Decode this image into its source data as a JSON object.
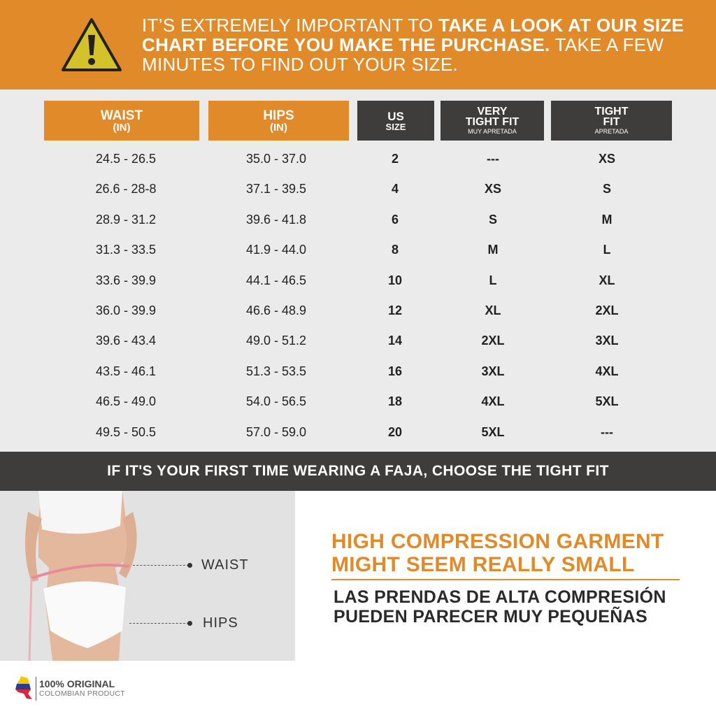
{
  "banner": {
    "icon": "warning-triangle-icon",
    "text_1": "IT’S EXTREMELY IMPORTANT TO ",
    "text_bold": "TAKE A LOOK AT OUR SIZE CHART BEFORE YOU MAKE THE PURCHASE.",
    "text_2": " TAKE A FEW MINUTES TO FIND OUT YOUR SIZE."
  },
  "table": {
    "headers": [
      {
        "title": "WAIST",
        "sub": "(IN)"
      },
      {
        "title": "HIPS",
        "sub": "(IN)"
      },
      {
        "title": "US",
        "sub": "SIZE"
      },
      {
        "title": "VERY\nTIGHT FIT",
        "sub": "MUY APRETADA"
      },
      {
        "title": "TIGHT\nFIT",
        "sub": "APRETADA"
      }
    ],
    "rows": [
      [
        "24.5 - 26.5",
        "35.0 - 37.0",
        "2",
        "---",
        "XS"
      ],
      [
        "26.6 - 28-8",
        "37.1 - 39.5",
        "4",
        "XS",
        "S"
      ],
      [
        "28.9 - 31.2",
        "39.6 - 41.8",
        "6",
        "S",
        "M"
      ],
      [
        "31.3 - 33.5",
        "41.9 - 44.0",
        "8",
        "M",
        "L"
      ],
      [
        "33.6 - 39.9",
        "44.1 - 46.5",
        "10",
        "L",
        "XL"
      ],
      [
        "36.0 - 39.9",
        "46.6 - 48.9",
        "12",
        "XL",
        "2XL"
      ],
      [
        "39.6 - 43.4",
        "49.0 - 51.2",
        "14",
        "2XL",
        "3XL"
      ],
      [
        "43.5 - 46.1",
        "51.3 - 53.5",
        "16",
        "3XL",
        "4XL"
      ],
      [
        "46.5 - 49.0",
        "54.0 - 56.5",
        "18",
        "4XL",
        "5XL"
      ],
      [
        "49.5 - 50.5",
        "57.0 - 59.0",
        "20",
        "5XL",
        "---"
      ]
    ]
  },
  "tip": "IF IT'S YOUR FIRST TIME WEARING A FAJA, CHOOSE THE TIGHT FIT",
  "photo": {
    "waist_label": "WAIST",
    "hips_label": "HIPS"
  },
  "headline": {
    "line1": "HIGH COMPRESSION GARMENT",
    "line2": "MIGHT SEEM REALLY SMALL"
  },
  "subheadline": {
    "line1": "LAS PRENDAS DE ALTA COMPRESIÓN",
    "line2": "PUEDEN PARECER MUY PEQUEÑAS"
  },
  "logo": {
    "line1": "100% ORIGINAL",
    "line2": "COLOMBIAN PRODUCT",
    "icon": "colombia-map-flag-icon"
  },
  "colors": {
    "accent": "#e08a2a",
    "dark": "#3f3c3c",
    "background": "#ebebeb"
  }
}
